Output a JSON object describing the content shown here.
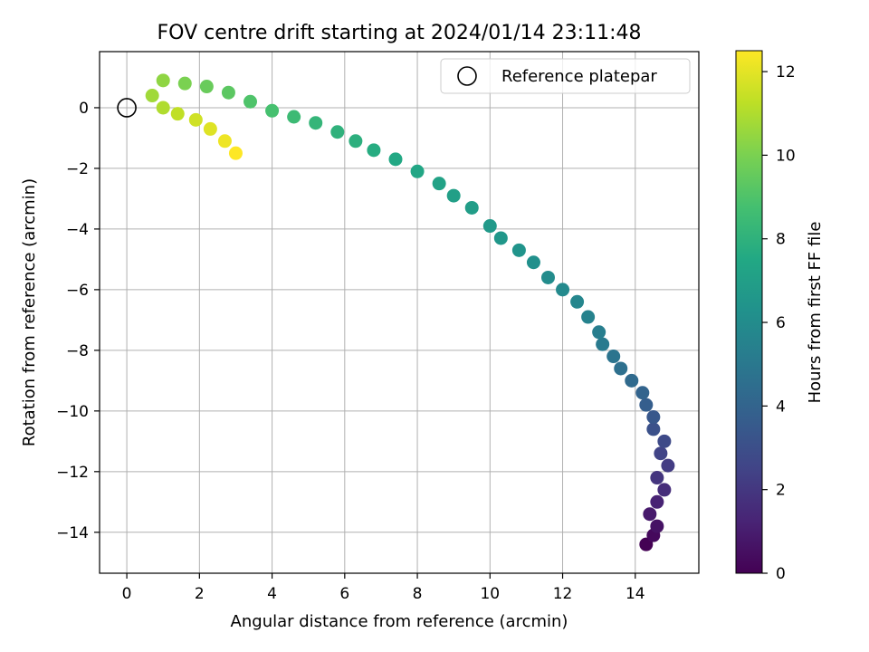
{
  "chart_data": {
    "type": "scatter",
    "title": "FOV centre drift starting at 2024/01/14 23:11:48",
    "xlabel": "Angular distance from reference (arcmin)",
    "ylabel": "Rotation from reference (arcmin)",
    "xlim": [
      -0.75,
      15.75
    ],
    "ylim": [
      -15.35,
      1.85
    ],
    "x_ticks": [
      0,
      2,
      4,
      6,
      8,
      10,
      12,
      14
    ],
    "x_tick_labels": [
      "0",
      "2",
      "4",
      "6",
      "8",
      "10",
      "12",
      "14"
    ],
    "y_ticks": [
      0,
      -2,
      -4,
      -6,
      -8,
      -10,
      -12,
      -14
    ],
    "y_tick_labels": [
      "0",
      "−2",
      "−4",
      "−6",
      "−8",
      "−10",
      "−12",
      "−14"
    ],
    "grid": true,
    "legend": {
      "placement": "top-right",
      "entries": [
        "Reference platepar"
      ]
    },
    "reference_point": {
      "x": 0,
      "y": 0
    },
    "colorbar": {
      "label": "Hours from first FF file",
      "range": [
        0,
        12.5
      ],
      "ticks": [
        0,
        2,
        4,
        6,
        8,
        10,
        12
      ],
      "tick_labels": [
        "0",
        "2",
        "4",
        "6",
        "8",
        "10",
        "12"
      ],
      "colormap": "viridis"
    },
    "drift_track": [
      {
        "x": 14.3,
        "y": -14.4,
        "hours": 0.0
      },
      {
        "x": 14.5,
        "y": -14.1,
        "hours": 0.3
      },
      {
        "x": 14.6,
        "y": -13.8,
        "hours": 0.6
      },
      {
        "x": 14.4,
        "y": -13.4,
        "hours": 0.9
      },
      {
        "x": 14.6,
        "y": -13.0,
        "hours": 1.2
      },
      {
        "x": 14.8,
        "y": -12.6,
        "hours": 1.6
      },
      {
        "x": 14.6,
        "y": -12.2,
        "hours": 1.9
      },
      {
        "x": 14.9,
        "y": -11.8,
        "hours": 2.2
      },
      {
        "x": 14.7,
        "y": -11.4,
        "hours": 2.5
      },
      {
        "x": 14.8,
        "y": -11.0,
        "hours": 2.8
      },
      {
        "x": 14.5,
        "y": -10.6,
        "hours": 3.1
      },
      {
        "x": 14.5,
        "y": -10.2,
        "hours": 3.4
      },
      {
        "x": 14.3,
        "y": -9.8,
        "hours": 3.7
      },
      {
        "x": 14.2,
        "y": -9.4,
        "hours": 4.0
      },
      {
        "x": 13.9,
        "y": -9.0,
        "hours": 4.3
      },
      {
        "x": 13.6,
        "y": -8.6,
        "hours": 4.6
      },
      {
        "x": 13.4,
        "y": -8.2,
        "hours": 4.8
      },
      {
        "x": 13.1,
        "y": -7.8,
        "hours": 5.1
      },
      {
        "x": 13.0,
        "y": -7.4,
        "hours": 5.3
      },
      {
        "x": 12.7,
        "y": -6.9,
        "hours": 5.5
      },
      {
        "x": 12.4,
        "y": -6.4,
        "hours": 5.7
      },
      {
        "x": 12.0,
        "y": -6.0,
        "hours": 5.9
      },
      {
        "x": 11.6,
        "y": -5.6,
        "hours": 6.0
      },
      {
        "x": 11.2,
        "y": -5.1,
        "hours": 6.2
      },
      {
        "x": 10.8,
        "y": -4.7,
        "hours": 6.4
      },
      {
        "x": 10.3,
        "y": -4.3,
        "hours": 6.6
      },
      {
        "x": 10.0,
        "y": -3.9,
        "hours": 6.7
      },
      {
        "x": 9.5,
        "y": -3.3,
        "hours": 6.9
      },
      {
        "x": 9.0,
        "y": -2.9,
        "hours": 7.0
      },
      {
        "x": 8.6,
        "y": -2.5,
        "hours": 7.2
      },
      {
        "x": 8.0,
        "y": -2.1,
        "hours": 7.4
      },
      {
        "x": 7.4,
        "y": -1.7,
        "hours": 7.5
      },
      {
        "x": 6.8,
        "y": -1.4,
        "hours": 7.7
      },
      {
        "x": 6.3,
        "y": -1.1,
        "hours": 7.9
      },
      {
        "x": 5.8,
        "y": -0.8,
        "hours": 8.0
      },
      {
        "x": 5.2,
        "y": -0.5,
        "hours": 8.2
      },
      {
        "x": 4.6,
        "y": -0.3,
        "hours": 8.5
      },
      {
        "x": 4.0,
        "y": -0.1,
        "hours": 8.8
      },
      {
        "x": 3.4,
        "y": 0.2,
        "hours": 9.0
      },
      {
        "x": 2.8,
        "y": 0.5,
        "hours": 9.3
      },
      {
        "x": 2.2,
        "y": 0.7,
        "hours": 9.6
      },
      {
        "x": 1.6,
        "y": 0.8,
        "hours": 10.0
      },
      {
        "x": 1.0,
        "y": 0.9,
        "hours": 10.4
      },
      {
        "x": 0.7,
        "y": 0.4,
        "hours": 10.7
      },
      {
        "x": 1.0,
        "y": 0.0,
        "hours": 11.0
      },
      {
        "x": 1.4,
        "y": -0.2,
        "hours": 11.3
      },
      {
        "x": 1.9,
        "y": -0.4,
        "hours": 11.6
      },
      {
        "x": 2.3,
        "y": -0.7,
        "hours": 11.9
      },
      {
        "x": 2.7,
        "y": -1.1,
        "hours": 12.2
      },
      {
        "x": 3.0,
        "y": -1.5,
        "hours": 12.5
      }
    ]
  }
}
